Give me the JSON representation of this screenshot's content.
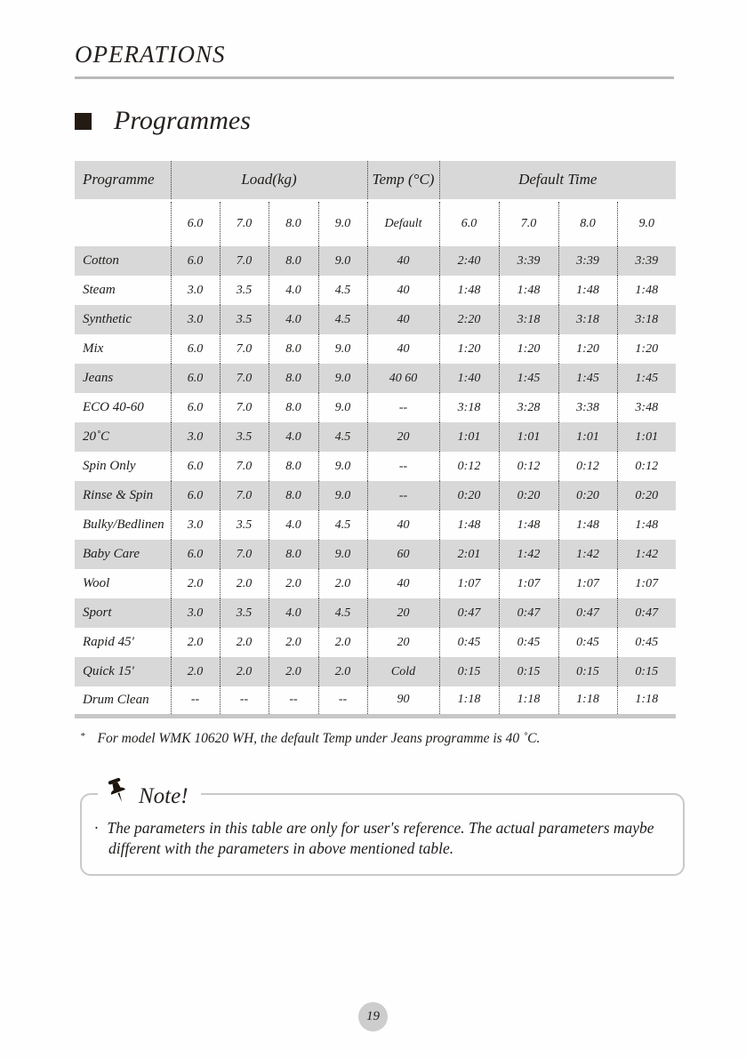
{
  "page": {
    "header_title": "OPERATIONS",
    "section_title": "Programmes",
    "page_number": "19"
  },
  "table": {
    "headers": {
      "programme": "Programme",
      "load": "Load(kg)",
      "temp": "Temp (°C)",
      "default_time": "Default Time",
      "temp_sub": "Default"
    },
    "load_sizes": [
      "6.0",
      "7.0",
      "8.0",
      "9.0"
    ],
    "time_sizes": [
      "6.0",
      "7.0",
      "8.0",
      "9.0"
    ],
    "rows": [
      {
        "name": "Cotton",
        "loads": [
          "6.0",
          "7.0",
          "8.0",
          "9.0"
        ],
        "temp": "40",
        "times": [
          "2:40",
          "3:39",
          "3:39",
          "3:39"
        ]
      },
      {
        "name": "Steam",
        "loads": [
          "3.0",
          "3.5",
          "4.0",
          "4.5"
        ],
        "temp": "40",
        "times": [
          "1:48",
          "1:48",
          "1:48",
          "1:48"
        ]
      },
      {
        "name": "Synthetic",
        "loads": [
          "3.0",
          "3.5",
          "4.0",
          "4.5"
        ],
        "temp": "40",
        "times": [
          "2:20",
          "3:18",
          "3:18",
          "3:18"
        ]
      },
      {
        "name": "Mix",
        "loads": [
          "6.0",
          "7.0",
          "8.0",
          "9.0"
        ],
        "temp": "40",
        "times": [
          "1:20",
          "1:20",
          "1:20",
          "1:20"
        ]
      },
      {
        "name": "Jeans",
        "loads": [
          "6.0",
          "7.0",
          "8.0",
          "9.0"
        ],
        "temp": "40 60",
        "times": [
          "1:40",
          "1:45",
          "1:45",
          "1:45"
        ]
      },
      {
        "name": "ECO 40-60",
        "loads": [
          "6.0",
          "7.0",
          "8.0",
          "9.0"
        ],
        "temp": "--",
        "times": [
          "3:18",
          "3:28",
          "3:38",
          "3:48"
        ]
      },
      {
        "name": "20˚C",
        "loads": [
          "3.0",
          "3.5",
          "4.0",
          "4.5"
        ],
        "temp": "20",
        "times": [
          "1:01",
          "1:01",
          "1:01",
          "1:01"
        ]
      },
      {
        "name": "Spin Only",
        "loads": [
          "6.0",
          "7.0",
          "8.0",
          "9.0"
        ],
        "temp": "--",
        "times": [
          "0:12",
          "0:12",
          "0:12",
          "0:12"
        ]
      },
      {
        "name": "Rinse & Spin",
        "loads": [
          "6.0",
          "7.0",
          "8.0",
          "9.0"
        ],
        "temp": "--",
        "times": [
          "0:20",
          "0:20",
          "0:20",
          "0:20"
        ]
      },
      {
        "name": "Bulky/Bedlinen",
        "loads": [
          "3.0",
          "3.5",
          "4.0",
          "4.5"
        ],
        "temp": "40",
        "times": [
          "1:48",
          "1:48",
          "1:48",
          "1:48"
        ]
      },
      {
        "name": "Baby Care",
        "loads": [
          "6.0",
          "7.0",
          "8.0",
          "9.0"
        ],
        "temp": "60",
        "times": [
          "2:01",
          "1:42",
          "1:42",
          "1:42"
        ]
      },
      {
        "name": "Wool",
        "loads": [
          "2.0",
          "2.0",
          "2.0",
          "2.0"
        ],
        "temp": "40",
        "times": [
          "1:07",
          "1:07",
          "1:07",
          "1:07"
        ]
      },
      {
        "name": "Sport",
        "loads": [
          "3.0",
          "3.5",
          "4.0",
          "4.5"
        ],
        "temp": "20",
        "times": [
          "0:47",
          "0:47",
          "0:47",
          "0:47"
        ]
      },
      {
        "name": "Rapid 45′",
        "loads": [
          "2.0",
          "2.0",
          "2.0",
          "2.0"
        ],
        "temp": "20",
        "times": [
          "0:45",
          "0:45",
          "0:45",
          "0:45"
        ]
      },
      {
        "name": "Quick 15′",
        "loads": [
          "2.0",
          "2.0",
          "2.0",
          "2.0"
        ],
        "temp": "Cold",
        "times": [
          "0:15",
          "0:15",
          "0:15",
          "0:15"
        ]
      },
      {
        "name": "Drum Clean",
        "loads": [
          "--",
          "--",
          "--",
          "--"
        ],
        "temp": "90",
        "times": [
          "1:18",
          "1:18",
          "1:18",
          "1:18"
        ]
      }
    ]
  },
  "footnote": {
    "bullet": "*",
    "text": "For model WMK 10620 WH, the default Temp under Jeans programme is 40 ˚C."
  },
  "note": {
    "title": "Note!",
    "bullet": "·",
    "text": "The parameters in this table are only for user's reference. The actual parameters maybe different with the parameters in above mentioned table."
  },
  "colors": {
    "row_shade": "#d8d8d8",
    "header_rule": "#b9b9b9",
    "table_bottom_bar": "#c7c7c7",
    "note_border": "#c9c9c9",
    "page_badge": "#cdcdcd",
    "text": "#1c1c1c"
  }
}
